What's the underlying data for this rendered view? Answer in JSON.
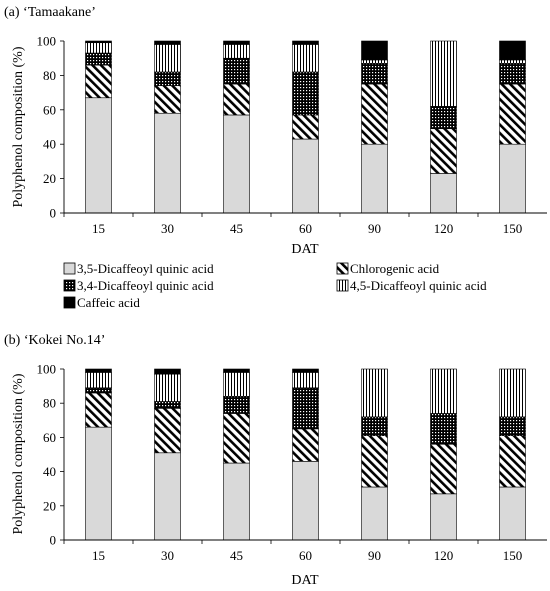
{
  "figure": {
    "legend_entries": [
      "3,5-Dicaffeoyl quinic acid",
      "Chlorogenic acid",
      "3,4-Dicaffeoyl quinic acid",
      "4,5-Dicaffeoyl quinic acid",
      "Caffeic acid"
    ],
    "legend_placement": "between-panels",
    "series_colors": {
      "3,5-Dicaffeoyl quinic acid": "#d9d9d9",
      "Chlorogenic acid": "diagonal-stripe",
      "3,4-Dicaffeoyl quinic acid": "dark-dotted",
      "4,5-Dicaffeoyl quinic acid": "vertical-stripe",
      "Caffeic acid": "#000000"
    }
  },
  "chart_data": [
    {
      "type": "bar",
      "stacked": true,
      "title": "(a) ‘Tamaakane’",
      "xlabel": "DAT",
      "ylabel": "Polyphenol composition (%)",
      "ylim": [
        0,
        100
      ],
      "yticks": [
        "0",
        "20",
        "40",
        "60",
        "80",
        "100"
      ],
      "grid": false,
      "categories": [
        "15",
        "30",
        "45",
        "60",
        "90",
        "120",
        "150"
      ],
      "series": [
        {
          "name": "3,5-Dicaffeoyl quinic acid",
          "values": [
            67,
            58,
            57,
            43,
            40,
            23,
            40
          ]
        },
        {
          "name": "Chlorogenic acid",
          "values": [
            19,
            16,
            18,
            14,
            35,
            26,
            35
          ]
        },
        {
          "name": "3,4-Dicaffeoyl quinic acid",
          "values": [
            7,
            8,
            15,
            25,
            12,
            13,
            12
          ]
        },
        {
          "name": "4,5-Dicaffeoyl quinic acid",
          "values": [
            6,
            16,
            8,
            16,
            2,
            38,
            2
          ]
        },
        {
          "name": "Caffeic acid",
          "values": [
            1,
            2,
            2,
            2,
            11,
            0,
            11
          ]
        }
      ]
    },
    {
      "type": "bar",
      "stacked": true,
      "title": "(b) ‘Kokei No.14’",
      "xlabel": "DAT",
      "ylabel": "Polyphenol composition (%)",
      "ylim": [
        0,
        100
      ],
      "yticks": [
        "0",
        "20",
        "40",
        "60",
        "80",
        "100"
      ],
      "grid": false,
      "categories": [
        "15",
        "30",
        "45",
        "60",
        "90",
        "120",
        "150"
      ],
      "series": [
        {
          "name": "3,5-Dicaffeoyl quinic acid",
          "values": [
            66,
            51,
            45,
            46,
            31,
            27,
            31
          ]
        },
        {
          "name": "Chlorogenic acid",
          "values": [
            20,
            26,
            29,
            19,
            30,
            29,
            30
          ]
        },
        {
          "name": "3,4-Dicaffeoyl quinic acid",
          "values": [
            3,
            4,
            10,
            24,
            11,
            18,
            11
          ]
        },
        {
          "name": "4,5-Dicaffeoyl quinic acid",
          "values": [
            9,
            16,
            14,
            9,
            28,
            26,
            28
          ]
        },
        {
          "name": "Caffeic acid",
          "values": [
            2,
            3,
            2,
            2,
            0,
            0,
            0
          ]
        }
      ]
    }
  ]
}
